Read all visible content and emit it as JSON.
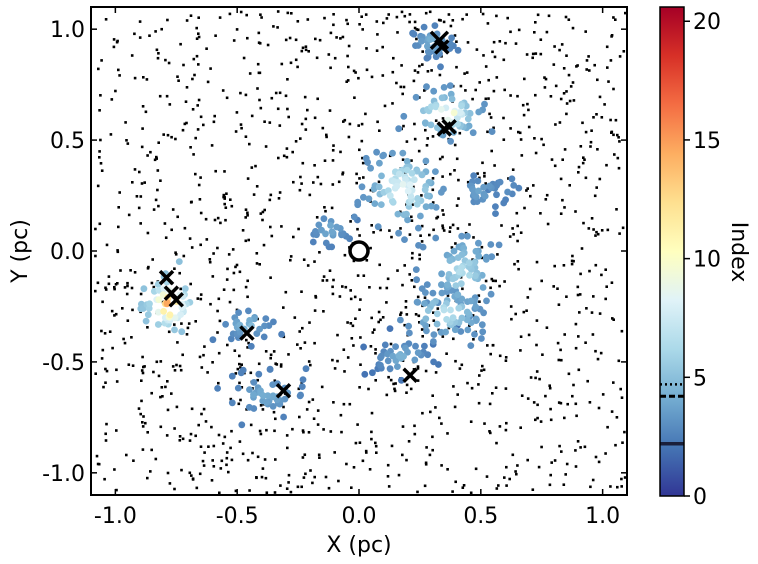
{
  "chart_data": {
    "type": "scatter",
    "xlabel": "X (pc)",
    "ylabel": "Y (pc)",
    "xlim": [
      -1.1,
      1.1
    ],
    "ylim": [
      -1.1,
      1.1
    ],
    "x_ticks": [
      -1.0,
      -0.5,
      0.0,
      0.5,
      1.0
    ],
    "x_tick_labels": [
      "-1.0",
      "-0.5",
      "0.0",
      "0.5",
      "1.0"
    ],
    "y_ticks": [
      -1.0,
      -0.5,
      0.0,
      0.5,
      1.0
    ],
    "y_tick_labels": [
      "-1.0",
      "-0.5",
      "0.0",
      "0.5",
      "1.0"
    ],
    "background_points": "random uniform field of small black dots",
    "clusters": [
      {
        "x": 0.3,
        "y": 0.94,
        "sx": 0.05,
        "sy": 0.04,
        "n": 40,
        "base": 2.5,
        "peak": 4.5
      },
      {
        "x": 0.36,
        "y": 0.62,
        "sx": 0.08,
        "sy": 0.06,
        "n": 60,
        "base": 3.0,
        "peak": 10.5
      },
      {
        "x": 0.18,
        "y": 0.28,
        "sx": 0.09,
        "sy": 0.1,
        "n": 90,
        "base": 3.0,
        "peak": 9.0
      },
      {
        "x": 0.5,
        "y": 0.27,
        "sx": 0.06,
        "sy": 0.04,
        "n": 25,
        "base": 2.5,
        "peak": 4.0
      },
      {
        "x": 0.43,
        "y": -0.1,
        "sx": 0.07,
        "sy": 0.1,
        "n": 80,
        "base": 3.0,
        "peak": 7.0
      },
      {
        "x": 0.36,
        "y": -0.28,
        "sx": 0.09,
        "sy": 0.06,
        "n": 60,
        "base": 3.0,
        "peak": 7.5
      },
      {
        "x": -0.12,
        "y": 0.1,
        "sx": 0.05,
        "sy": 0.04,
        "n": 25,
        "base": 2.5,
        "peak": 4.5
      },
      {
        "x": 0.18,
        "y": -0.48,
        "sx": 0.09,
        "sy": 0.06,
        "n": 40,
        "base": 2.0,
        "peak": 4.5
      },
      {
        "x": -0.78,
        "y": -0.24,
        "sx": 0.05,
        "sy": 0.06,
        "n": 55,
        "base": 5.0,
        "peak": 15.5
      },
      {
        "x": -0.46,
        "y": -0.33,
        "sx": 0.06,
        "sy": 0.04,
        "n": 30,
        "base": 2.5,
        "peak": 5.0
      },
      {
        "x": -0.38,
        "y": -0.65,
        "sx": 0.09,
        "sy": 0.05,
        "n": 45,
        "base": 2.5,
        "peak": 4.5
      },
      {
        "x": 0.6,
        "y": 0.29,
        "sx": 0.04,
        "sy": 0.03,
        "n": 12,
        "base": 2.5,
        "peak": 3.5
      }
    ],
    "x_markers": [
      {
        "x": 0.33,
        "y": 0.95,
        "size": 1.3
      },
      {
        "x": 0.34,
        "y": 0.92,
        "size": 1.0
      },
      {
        "x": 0.35,
        "y": 0.55,
        "size": 1.0
      },
      {
        "x": 0.37,
        "y": 0.56,
        "size": 1.0
      },
      {
        "x": -0.79,
        "y": -0.12,
        "size": 1.0
      },
      {
        "x": -0.77,
        "y": -0.19,
        "size": 1.0
      },
      {
        "x": -0.75,
        "y": -0.22,
        "size": 1.0
      },
      {
        "x": -0.46,
        "y": -0.37,
        "size": 1.0
      },
      {
        "x": -0.31,
        "y": -0.63,
        "size": 1.0
      },
      {
        "x": 0.21,
        "y": -0.56,
        "size": 1.0
      }
    ],
    "center_marker": {
      "x": 0.0,
      "y": 0.0,
      "shape": "open circle"
    },
    "colorbar": {
      "label": "Index",
      "colormap": "RdYlBu_r",
      "range": [
        0,
        20.6
      ],
      "ticks": [
        0,
        5,
        10,
        15,
        20
      ],
      "tick_labels": [
        "0",
        "5",
        "10",
        "15",
        "20"
      ],
      "reference_lines": [
        {
          "value": 4.7,
          "style": "dotted"
        },
        {
          "value": 4.2,
          "style": "dashed"
        },
        {
          "value": 2.2,
          "style": "solid"
        }
      ]
    },
    "grid": false,
    "legend": "none"
  }
}
